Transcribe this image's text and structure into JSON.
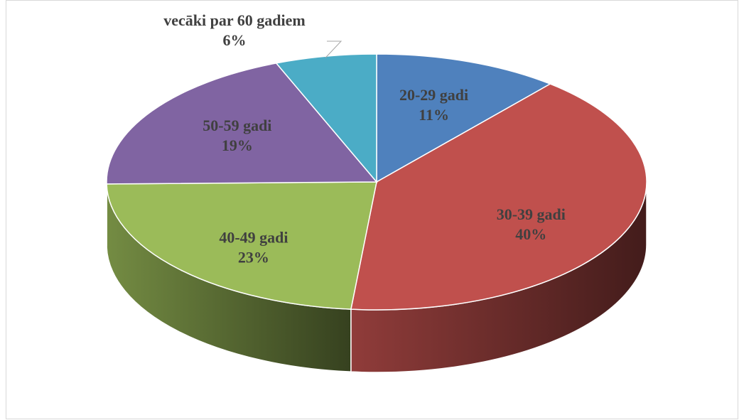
{
  "chart_data": {
    "type": "pie3d",
    "categories": [
      "20-29 gadi",
      "30-39 gadi",
      "40-49 gadi",
      "50-59 gadi",
      "vecāki par 60 gadiem"
    ],
    "values": [
      11,
      40,
      23,
      19,
      6
    ],
    "value_labels": [
      "11%",
      "40%",
      "23%",
      "19%",
      "6%"
    ],
    "colors": [
      "#4f81bd",
      "#c0504d",
      "#9bbb59",
      "#8064a2",
      "#4bacc6"
    ]
  }
}
